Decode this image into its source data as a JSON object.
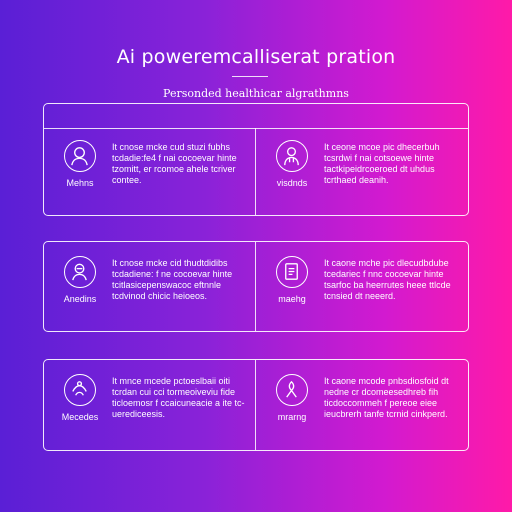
{
  "title": "Ai poweremcalliserat pration",
  "subtitle": "Personded healthicar algrathmns",
  "rows": [
    {
      "left": {
        "icon": "person-icon",
        "label": "Mehns",
        "text": "It cnose mcke cud stuzi fubhs tcdadie:fe4 f nai cocoevar hinte tzomitt, er rcomoe ahele tcriver contee."
      },
      "right": {
        "icon": "doctor-icon",
        "label": "visdnds",
        "text": "It ceone mcoe pic dhecerbuh tcsrdwi f nai cotsoewe hinte tactkipeidrcoeroed dt uhdus tcrthaed deanih."
      }
    },
    {
      "left": {
        "icon": "patient-icon",
        "label": "Anedins",
        "text": "It cnose mcke cid thudtdidibs tcdadiene: f ne cocoevar hinte tcitlasicepenswacoc eftnnle tcdvinod chicic heioeos."
      },
      "right": {
        "icon": "report-icon",
        "label": "maehg",
        "text": "It caone mche pic dlecudbdube tcedariec f nnc cocoevar hinte tsarfoc ba heerrutes heee ttlcde tcnsied dt neeerd."
      }
    },
    {
      "left": {
        "icon": "hands-icon",
        "label": "Mecedes",
        "text": "It mnce mcede pctoeslbaii oiti tcrdan cui cci tormeoiveviu fide ticloemosr f ccaicuneacie a ite tc-uerediceesis."
      },
      "right": {
        "icon": "ribbon-icon",
        "label": "mrarng",
        "text": "It caone mcode pnbsdiosfoid dt nedne cr dcomeesedhreb fih ticdoccommeh f pereoe eiee ieucbrerh tanfe tcrnid cinkperd."
      }
    }
  ]
}
